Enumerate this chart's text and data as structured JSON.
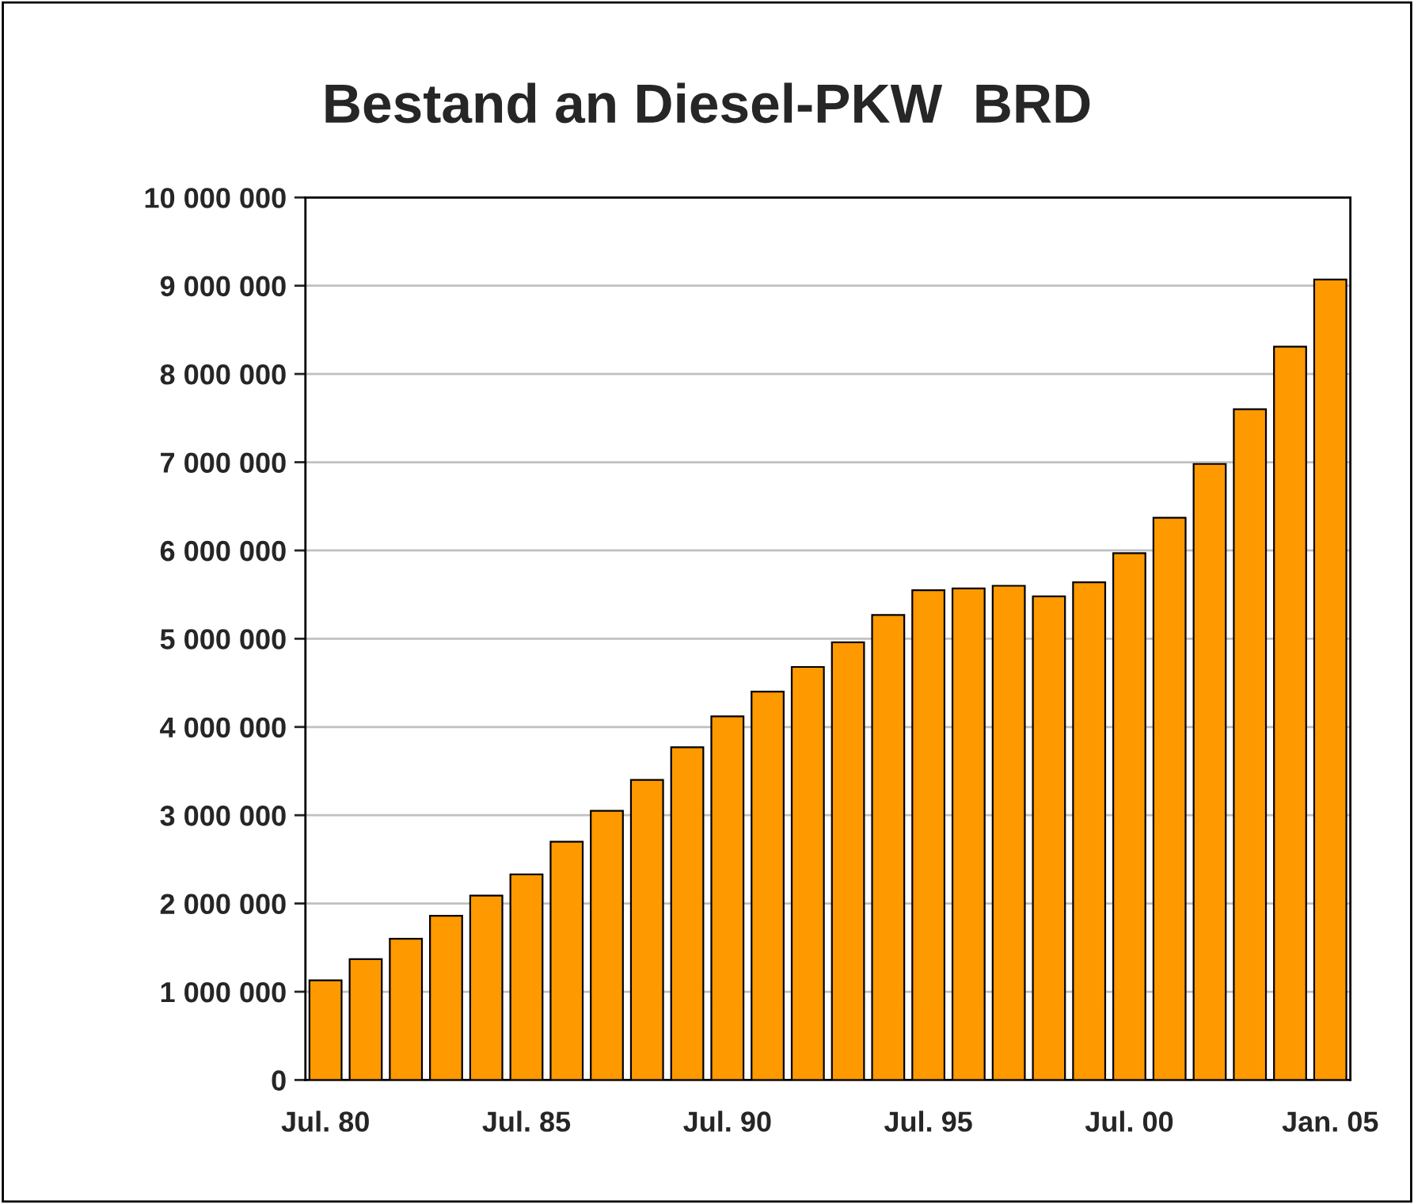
{
  "chart_data": {
    "type": "bar",
    "title": "Bestand an Diesel-PKW  BRD",
    "categories": [
      "Jul. 80",
      null,
      null,
      null,
      null,
      "Jul. 85",
      null,
      null,
      null,
      null,
      "Jul. 90",
      null,
      null,
      null,
      null,
      "Jul. 95",
      null,
      null,
      null,
      null,
      "Jul. 00",
      null,
      null,
      null,
      null,
      "Jan. 05"
    ],
    "values": [
      1130000,
      1370000,
      1600000,
      1860000,
      2090000,
      2330000,
      2700000,
      3050000,
      3400000,
      3770000,
      4120000,
      4400000,
      4680000,
      4960000,
      5270000,
      5550000,
      5570000,
      5600000,
      5480000,
      5640000,
      5970000,
      6370000,
      6980000,
      7600000,
      8310000,
      9070000
    ],
    "color": "#ff9900",
    "ylim": [
      0,
      10000000
    ],
    "yticks": [
      {
        "value": 0,
        "label": "0"
      },
      {
        "value": 1000000,
        "label": "1 000 000"
      },
      {
        "value": 2000000,
        "label": "2 000 000"
      },
      {
        "value": 3000000,
        "label": "3 000 000"
      },
      {
        "value": 4000000,
        "label": "4 000 000"
      },
      {
        "value": 5000000,
        "label": "5 000 000"
      },
      {
        "value": 6000000,
        "label": "6 000 000"
      },
      {
        "value": 7000000,
        "label": "7 000 000"
      },
      {
        "value": 8000000,
        "label": "8 000 000"
      },
      {
        "value": 9000000,
        "label": "9 000 000"
      },
      {
        "value": 10000000,
        "label": "10 000 000"
      }
    ],
    "grid": "y",
    "legend": false
  }
}
